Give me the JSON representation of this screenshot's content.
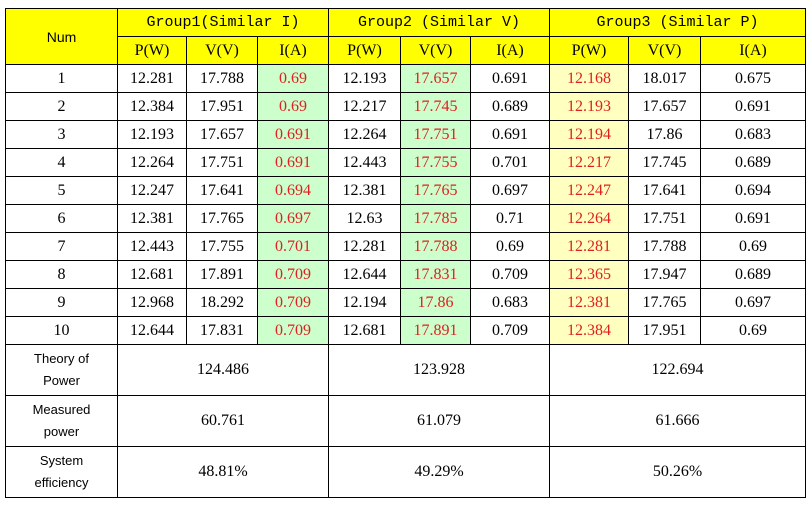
{
  "table": {
    "header": {
      "num": "Num",
      "groups": [
        {
          "name": "Group1(Similar I)",
          "columns": [
            "P(W)",
            "V(V)",
            "I(A)"
          ]
        },
        {
          "name": "Group2 (Similar V)",
          "columns": [
            "P(W)",
            "V(V)",
            "I(A)"
          ]
        },
        {
          "name": "Group3 (Similar P)",
          "columns": [
            "P(W)",
            "V(V)",
            "I(A)"
          ]
        }
      ]
    },
    "rows": [
      [
        1,
        12.281,
        17.788,
        0.69,
        12.193,
        17.657,
        0.691,
        12.168,
        18.017,
        0.675
      ],
      [
        2,
        12.384,
        17.951,
        0.69,
        12.217,
        17.745,
        0.689,
        12.193,
        17.657,
        0.691
      ],
      [
        3,
        12.193,
        17.657,
        0.691,
        12.264,
        17.751,
        0.691,
        12.194,
        17.86,
        0.683
      ],
      [
        4,
        12.264,
        17.751,
        0.691,
        12.443,
        17.755,
        0.701,
        12.217,
        17.745,
        0.689
      ],
      [
        5,
        12.247,
        17.641,
        0.694,
        12.381,
        17.765,
        0.697,
        12.247,
        17.641,
        0.694
      ],
      [
        6,
        12.381,
        17.765,
        0.697,
        12.63,
        17.785,
        0.71,
        12.264,
        17.751,
        0.691
      ],
      [
        7,
        12.443,
        17.755,
        0.701,
        12.281,
        17.788,
        0.69,
        12.281,
        17.788,
        0.69
      ],
      [
        8,
        12.681,
        17.891,
        0.709,
        12.644,
        17.831,
        0.709,
        12.365,
        17.947,
        0.689
      ],
      [
        9,
        12.968,
        18.292,
        0.709,
        12.194,
        17.86,
        0.683,
        12.381,
        17.765,
        0.697
      ],
      [
        10,
        12.644,
        17.831,
        0.709,
        12.681,
        17.891,
        0.709,
        12.384,
        17.951,
        0.69
      ]
    ],
    "summary": [
      {
        "label": "Theory of Power",
        "values": [
          124.486,
          123.928,
          122.694
        ]
      },
      {
        "label": "Measured power",
        "values": [
          60.761,
          61.079,
          61.666
        ]
      },
      {
        "label": "System efficiency",
        "values": [
          "48.81%",
          "49.29%",
          "50.26%"
        ]
      }
    ]
  }
}
